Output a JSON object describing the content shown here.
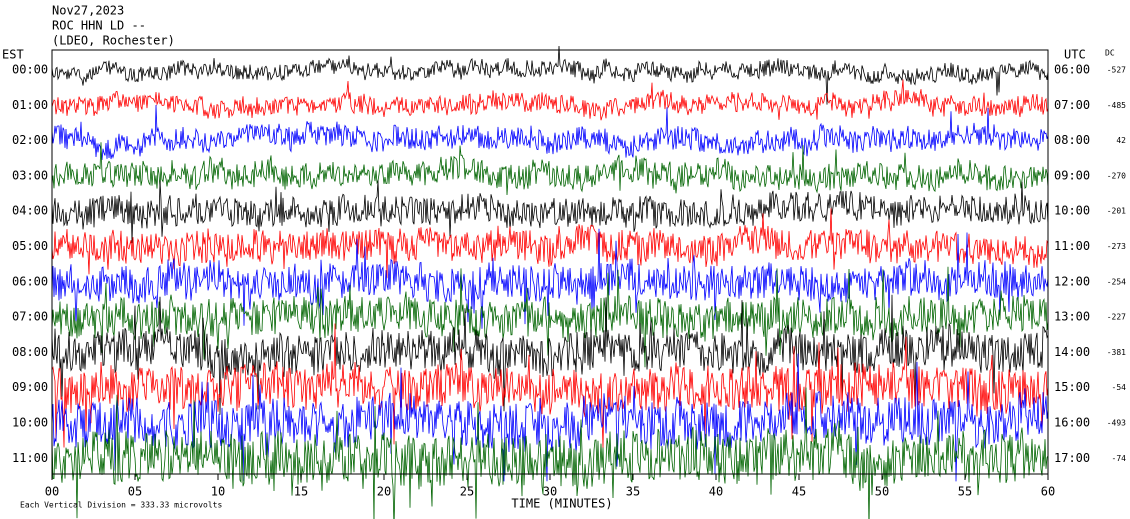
{
  "chart_data": {
    "type": "helicorder",
    "title_lines": [
      "Nov27,2023",
      "ROC HHN LD --",
      "(LDEO, Rochester)"
    ],
    "left_axis_label": "EST",
    "right_axis_label": "UTC",
    "dc_label": "DC",
    "x_label": "TIME (MINUTES)",
    "footer": "Each Vertical Division = 333.33 microvolts",
    "xlim": [
      0,
      60
    ],
    "xticks": [
      {
        "value": 0,
        "label": "00"
      },
      {
        "value": 5,
        "label": "05"
      },
      10,
      15,
      20,
      25,
      30,
      35,
      40,
      45,
      50,
      55,
      60
    ],
    "rows": [
      {
        "est": "00:00",
        "utc": "06:00",
        "dc": -527,
        "color": "#000000"
      },
      {
        "est": "01:00",
        "utc": "07:00",
        "dc": -485,
        "color": "#ff0000"
      },
      {
        "est": "02:00",
        "utc": "08:00",
        "dc": 42,
        "color": "#0000ff"
      },
      {
        "est": "03:00",
        "utc": "09:00",
        "dc": -270,
        "color": "#006400"
      },
      {
        "est": "04:00",
        "utc": "10:00",
        "dc": -201,
        "color": "#000000"
      },
      {
        "est": "05:00",
        "utc": "11:00",
        "dc": -273,
        "color": "#ff0000"
      },
      {
        "est": "06:00",
        "utc": "12:00",
        "dc": -254,
        "color": "#0000ff"
      },
      {
        "est": "07:00",
        "utc": "13:00",
        "dc": -227,
        "color": "#006400"
      },
      {
        "est": "08:00",
        "utc": "14:00",
        "dc": -381,
        "color": "#000000"
      },
      {
        "est": "09:00",
        "utc": "15:00",
        "dc": -54,
        "color": "#ff0000"
      },
      {
        "est": "10:00",
        "utc": "16:00",
        "dc": -493,
        "color": "#0000ff"
      },
      {
        "est": "11:00",
        "utc": "17:00",
        "dc": -74,
        "color": "#006400"
      }
    ]
  }
}
